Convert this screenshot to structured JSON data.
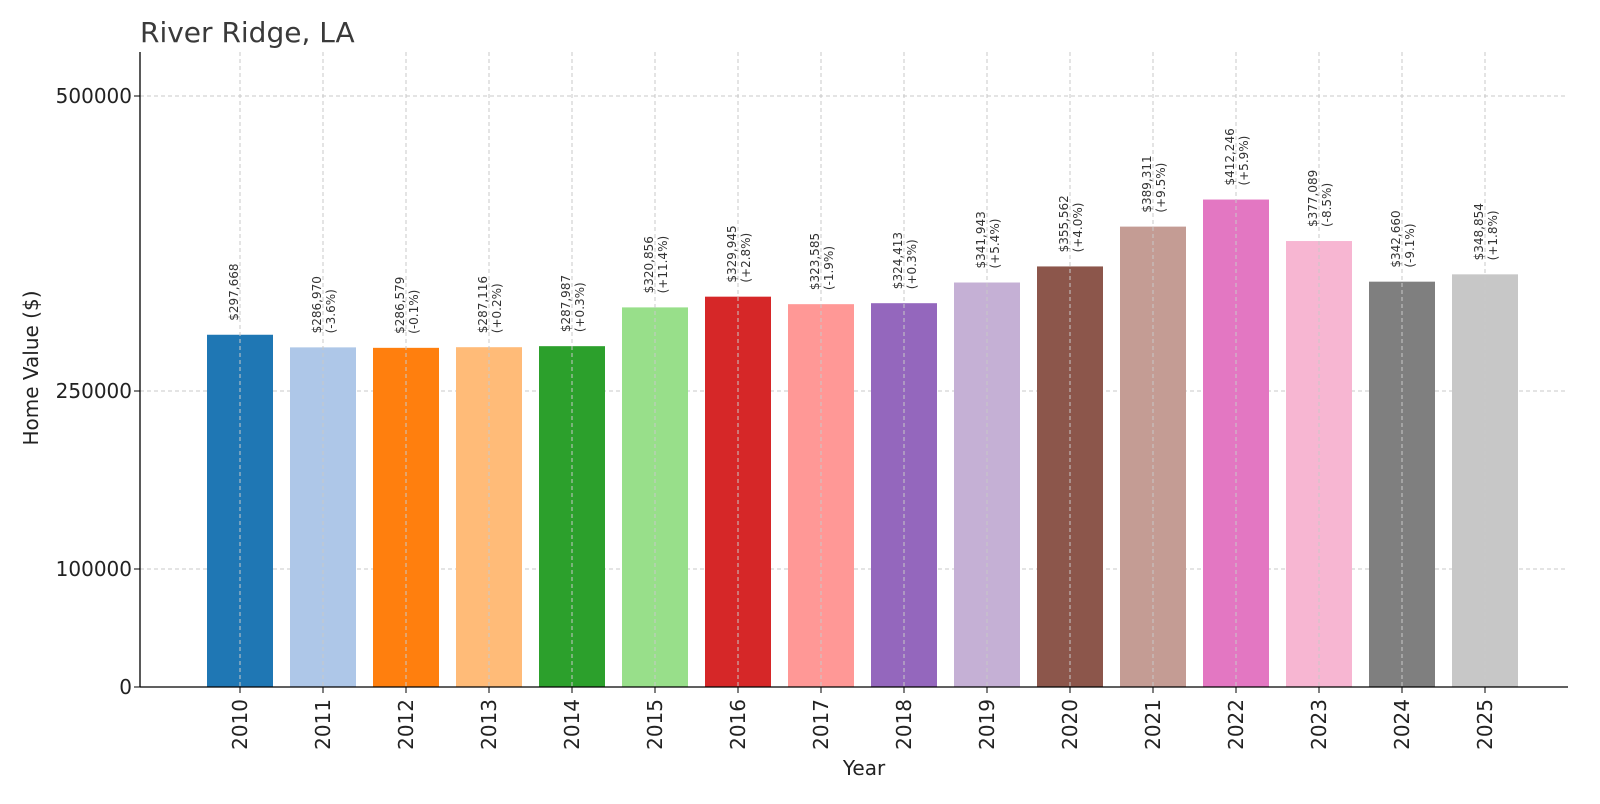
{
  "chart_data": {
    "type": "bar",
    "title": "River Ridge, LA",
    "xlabel": "Year",
    "ylabel": "Home Value ($)",
    "ylim": [
      0,
      540000
    ],
    "y_scale": "piecewise",
    "yticks": [
      0,
      100000,
      250000,
      500000
    ],
    "ytick_labels": [
      "0",
      "100000",
      "250000",
      "500000"
    ],
    "grid": true,
    "categories": [
      "2010",
      "2011",
      "2012",
      "2013",
      "2014",
      "2015",
      "2016",
      "2017",
      "2018",
      "2019",
      "2020",
      "2021",
      "2022",
      "2023",
      "2024",
      "2025"
    ],
    "values": [
      297668,
      286970,
      286579,
      287116,
      287987,
      320856,
      329945,
      323585,
      324413,
      341943,
      355562,
      389311,
      412246,
      377089,
      342660,
      348854
    ],
    "value_labels": [
      "$297,668",
      "$286,970",
      "$286,579",
      "$287,116",
      "$287,987",
      "$320,856",
      "$329,945",
      "$323,585",
      "$324,413",
      "$341,943",
      "$355,562",
      "$389,311",
      "$412,246",
      "$377,089",
      "$342,660",
      "$348,854"
    ],
    "change_labels": [
      "",
      "(-3.6%)",
      "(-0.1%)",
      "(+0.2%)",
      "(+0.3%)",
      "(+11.4%)",
      "(+2.8%)",
      "(-1.9%)",
      "(+0.3%)",
      "(+5.4%)",
      "(+4.0%)",
      "(+9.5%)",
      "(+5.9%)",
      "(-8.5%)",
      "(-9.1%)",
      "(+1.8%)"
    ],
    "colors": [
      "#1f77b4",
      "#aec7e8",
      "#ff7f0e",
      "#ffbb78",
      "#2ca02c",
      "#98df8a",
      "#d62728",
      "#ff9896",
      "#9467bd",
      "#c5b0d5",
      "#8c564b",
      "#c49c94",
      "#e377c2",
      "#f7b6d2",
      "#7f7f7f",
      "#c7c7c7"
    ]
  }
}
